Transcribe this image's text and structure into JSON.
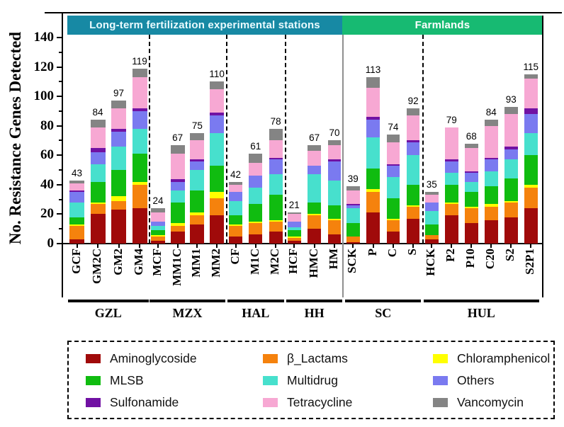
{
  "figure": {
    "regions": [
      {
        "label": "Long-term fertilization experimental stations",
        "color": "#1789A4",
        "text_color": "#EAFBFF"
      },
      {
        "label": "Farmlands",
        "color": "#17BA72",
        "text_color": "#FFFFFF"
      }
    ]
  },
  "chart_data": {
    "type": "bar",
    "stacked": true,
    "title": "",
    "ylabel": "No. Resistance Genes Detected",
    "xlabel": "",
    "ylim": [
      0,
      140
    ],
    "yticks": [
      0,
      20,
      40,
      60,
      80,
      100,
      120,
      140
    ],
    "grid": false,
    "legend_position": "bottom",
    "series_order": [
      "Aminoglycoside",
      "β_Lactams",
      "Chloramphenicol",
      "MLSB",
      "Multidrug",
      "Others",
      "Sulfonamide",
      "Tetracycline",
      "Vancomycin"
    ],
    "legend": [
      {
        "label": "Aminoglycoside",
        "color": "#A00A0A"
      },
      {
        "label": "β_Lactams",
        "color": "#F5820D"
      },
      {
        "label": "Chloramphenicol",
        "color": "#FFFF00"
      },
      {
        "label": "MLSB",
        "color": "#10BC10"
      },
      {
        "label": "Multidrug",
        "color": "#47E0CD"
      },
      {
        "label": "Others",
        "color": "#7A7AF0"
      },
      {
        "label": "Sulfonamide",
        "color": "#7111A3"
      },
      {
        "label": "Tetracycline",
        "color": "#F7A8D3"
      },
      {
        "label": "Vancomycin",
        "color": "#848484"
      }
    ],
    "groups": [
      {
        "name": "GZL",
        "region": "Long-term fertilization experimental stations",
        "bars": [
          {
            "label": "GCF",
            "total": 43,
            "values": [
              3,
              9,
              1,
              5,
              10,
              7,
              1,
              5,
              2
            ]
          },
          {
            "label": "GM2C",
            "total": 84,
            "values": [
              20,
              7,
              1,
              14,
              12,
              8,
              3,
              14,
              5
            ]
          },
          {
            "label": "GM2",
            "total": 97,
            "values": [
              23,
              6,
              3,
              18,
              16,
              10,
              2,
              14,
              5
            ]
          },
          {
            "label": "GM4",
            "total": 119,
            "values": [
              24,
              16,
              2,
              19,
              17,
              12,
              2,
              21,
              6
            ]
          }
        ]
      },
      {
        "name": "MZX",
        "region": "Long-term fertilization experimental stations",
        "bars": [
          {
            "label": "MCF",
            "total": 24,
            "values": [
              2,
              3,
              1,
              3,
              3,
              3,
              0,
              6,
              3
            ]
          },
          {
            "label": "MM1C",
            "total": 67,
            "values": [
              8,
              4,
              2,
              14,
              8,
              6,
              2,
              17,
              6
            ]
          },
          {
            "label": "MM1",
            "total": 75,
            "values": [
              13,
              6,
              2,
              15,
              14,
              6,
              1,
              13,
              5
            ]
          },
          {
            "label": "MM2",
            "total": 110,
            "values": [
              19,
              12,
              4,
              18,
              22,
              12,
              2,
              16,
              5
            ]
          }
        ]
      },
      {
        "name": "HAL",
        "region": "Long-term fertilization experimental stations",
        "bars": [
          {
            "label": "CF",
            "total": 42,
            "values": [
              5,
              7,
              1,
              6,
              10,
              6,
              0,
              5,
              2
            ]
          },
          {
            "label": "M1C",
            "total": 61,
            "values": [
              6,
              8,
              1,
              12,
              11,
              8,
              0,
              9,
              6
            ]
          },
          {
            "label": "M2C",
            "total": 78,
            "values": [
              8,
              7,
              1,
              17,
              14,
              10,
              1,
              12,
              8
            ]
          }
        ]
      },
      {
        "name": "HH",
        "region": "Long-term fertilization experimental stations",
        "bars": [
          {
            "label": "HCF",
            "total": 21,
            "values": [
              2,
              2,
              1,
              4,
              2,
              4,
              0,
              5,
              1
            ]
          },
          {
            "label": "HMC",
            "total": 67,
            "values": [
              10,
              9,
              1,
              8,
              19,
              6,
              0,
              10,
              4
            ]
          },
          {
            "label": "HM",
            "total": 70,
            "values": [
              6,
              10,
              1,
              9,
              17,
              13,
              1,
              10,
              3
            ]
          }
        ]
      },
      {
        "name": "SC",
        "region": "Farmlands",
        "bars": [
          {
            "label": "SCK",
            "total": 39,
            "values": [
              1,
              4,
              0,
              9,
              10,
              2,
              1,
              9,
              3
            ]
          },
          {
            "label": "P",
            "total": 113,
            "values": [
              21,
              14,
              2,
              14,
              21,
              12,
              2,
              20,
              7
            ]
          },
          {
            "label": "C",
            "total": 74,
            "values": [
              8,
              8,
              1,
              14,
              14,
              8,
              1,
              15,
              5
            ]
          },
          {
            "label": "S",
            "total": 92,
            "values": [
              17,
              8,
              1,
              14,
              20,
              9,
              1,
              17,
              5
            ]
          }
        ]
      },
      {
        "name": "HUL",
        "region": "Farmlands",
        "bars": [
          {
            "label": "HCK",
            "total": 35,
            "values": [
              3,
              3,
              0,
              7,
              9,
              6,
              0,
              5,
              2
            ]
          },
          {
            "label": "P2",
            "total": 79,
            "values": [
              19,
              8,
              1,
              12,
              8,
              8,
              1,
              22,
              0
            ]
          },
          {
            "label": "P10",
            "total": 68,
            "values": [
              14,
              10,
              1,
              10,
              7,
              6,
              1,
              16,
              3
            ]
          },
          {
            "label": "C20",
            "total": 84,
            "values": [
              16,
              9,
              2,
              12,
              10,
              8,
              1,
              22,
              4
            ]
          },
          {
            "label": "S2",
            "total": 93,
            "values": [
              18,
              10,
              1,
              15,
              13,
              7,
              2,
              22,
              5
            ]
          },
          {
            "label": "S2P1",
            "total": 115,
            "values": [
              24,
              14,
              2,
              20,
              15,
              13,
              4,
              20,
              3
            ]
          }
        ]
      }
    ]
  }
}
